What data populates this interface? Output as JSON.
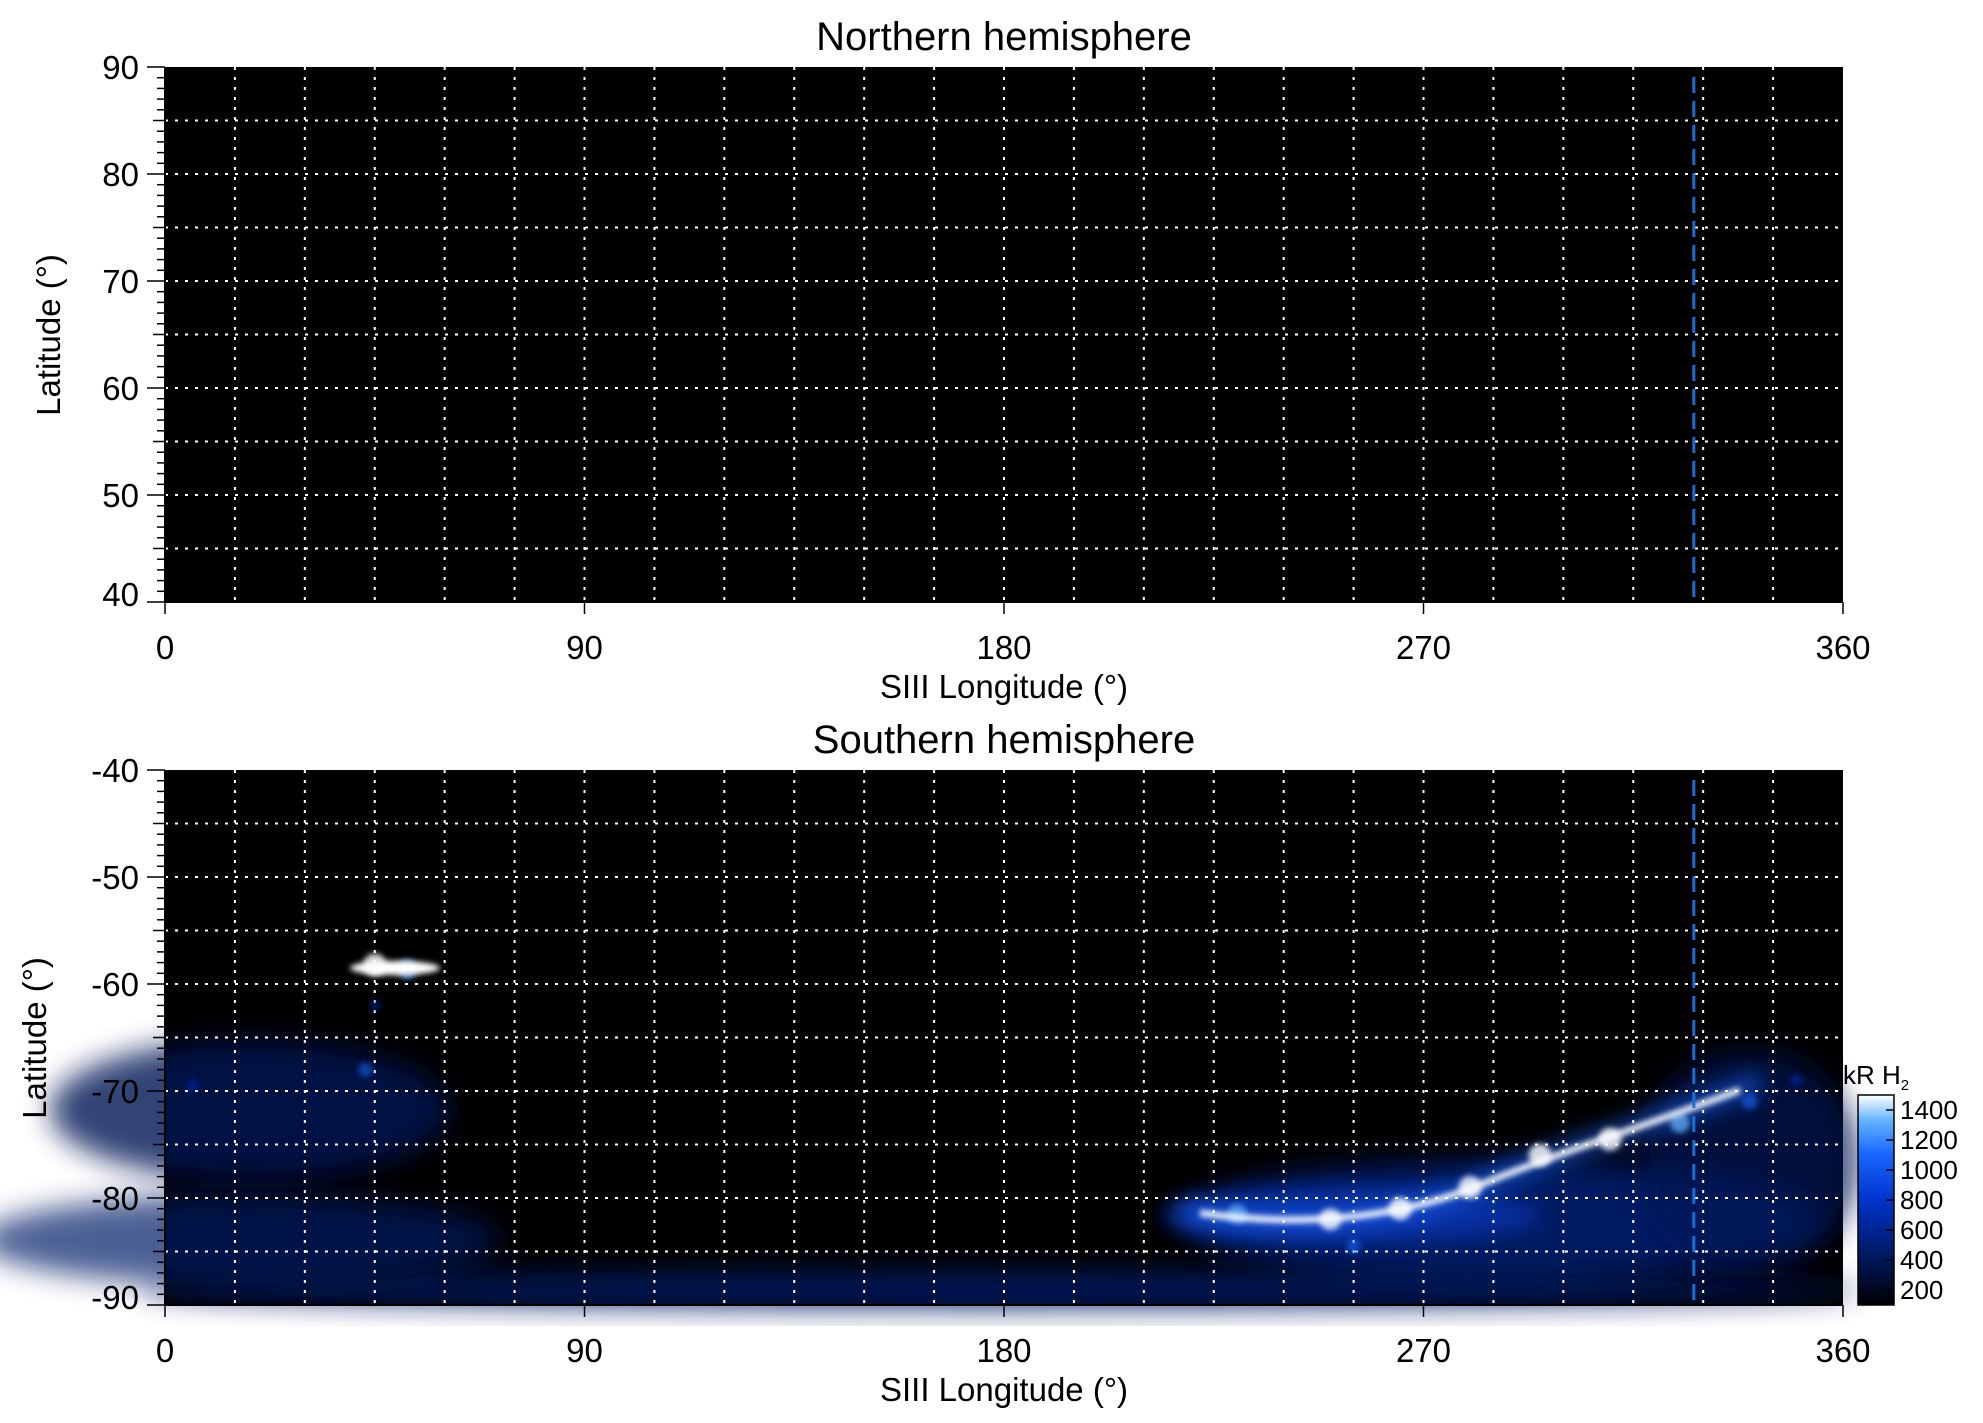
{
  "chart_data": [
    {
      "type": "heatmap",
      "title": "Northern hemisphere",
      "xlabel": "SIII Longitude (°)",
      "ylabel": "Latitude (°)",
      "xlim": [
        0,
        360
      ],
      "ylim": [
        40,
        90
      ],
      "xticks": [
        "0",
        "90",
        "180",
        "270",
        "360"
      ],
      "yticks": [
        "90",
        "80",
        "70",
        "60",
        "50",
        "40"
      ],
      "grid": true,
      "background": "#000000",
      "reference_line": {
        "x": 328,
        "color": "#1a6fd6",
        "style": "dashed"
      },
      "emission": []
    },
    {
      "type": "heatmap",
      "title": "Southern hemisphere",
      "xlabel": "SIII Longitude (°)",
      "ylabel": "Latitude (°)",
      "xlim": [
        0,
        360
      ],
      "ylim": [
        -90,
        -40
      ],
      "xticks": [
        "0",
        "90",
        "180",
        "270",
        "360"
      ],
      "yticks": [
        "-40",
        "-50",
        "-60",
        "-70",
        "-80",
        "-90"
      ],
      "grid": true,
      "background": "#000000",
      "reference_line": {
        "x": 328,
        "color": "#1a6fd6",
        "style": "dashed"
      },
      "emission": [
        {
          "lon": 45,
          "lat": -58.2,
          "value": 1400
        },
        {
          "lon": 52,
          "lat": -58.6,
          "value": 1100
        },
        {
          "lon": 43,
          "lat": -68.0,
          "value": 600
        },
        {
          "lon": 45,
          "lat": -62.0,
          "value": 300
        },
        {
          "lon": 6,
          "lat": -69.5,
          "value": 350
        },
        {
          "lon": 230,
          "lat": -81.5,
          "value": 1100
        },
        {
          "lon": 250,
          "lat": -82.0,
          "value": 1300
        },
        {
          "lon": 265,
          "lat": -81.0,
          "value": 1400
        },
        {
          "lon": 280,
          "lat": -79.0,
          "value": 1400
        },
        {
          "lon": 295,
          "lat": -76.0,
          "value": 1400
        },
        {
          "lon": 310,
          "lat": -74.5,
          "value": 1400
        },
        {
          "lon": 325,
          "lat": -73.0,
          "value": 1100
        },
        {
          "lon": 340,
          "lat": -71.0,
          "value": 700
        },
        {
          "lon": 350,
          "lat": -69.0,
          "value": 400
        },
        {
          "lon": 255,
          "lat": -84.5,
          "value": 600
        }
      ]
    }
  ],
  "colorbar": {
    "label": "kR H",
    "label_subscript": "2",
    "min": 100,
    "max": 1500,
    "ticks": [
      "1400",
      "1200",
      "1000",
      "800",
      "600",
      "400",
      "200"
    ],
    "tick_values": [
      1400,
      1200,
      1000,
      800,
      600,
      400,
      200
    ],
    "colors": [
      "#000000",
      "#001a66",
      "#0033cc",
      "#1a66ff",
      "#66b3ff",
      "#ffffff"
    ]
  }
}
